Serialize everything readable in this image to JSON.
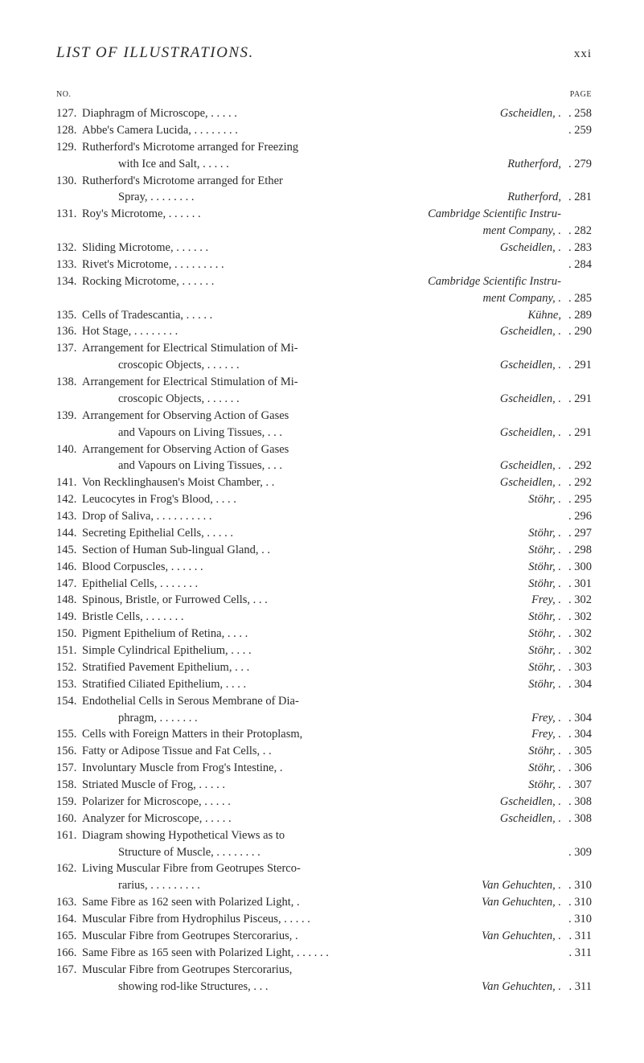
{
  "header": {
    "title": "LIST OF ILLUSTRATIONS.",
    "page_roman": "xxi",
    "col_no": "NO.",
    "col_page": "PAGE"
  },
  "entries": [
    {
      "n": "127.",
      "lines": [
        {
          "d": "Diaphragm of Microscope, .  .  .  . .",
          "s": "Gscheidlen, .",
          "p": ". 258"
        }
      ]
    },
    {
      "n": "128.",
      "lines": [
        {
          "d": "Abbe's Camera Lucida,    .  .  .  .  .  .  .  .",
          "s": "",
          "p": ". 259"
        }
      ]
    },
    {
      "n": "129.",
      "lines": [
        {
          "d": "Rutherford's Microtome arranged for Freezing",
          "s": "",
          "p": ""
        },
        {
          "d": "with Ice and Salt,    .  .  .  .  .",
          "h": 1,
          "s": "Rutherford,",
          "p": ". 279"
        }
      ]
    },
    {
      "n": "130.",
      "lines": [
        {
          "d": "Rutherford's Microtome arranged for Ether",
          "s": "",
          "p": ""
        },
        {
          "d": "Spray, .  .  .  .  .  .  .  .",
          "h": 1,
          "s": "Rutherford,",
          "p": ". 281"
        }
      ]
    },
    {
      "n": "131.",
      "lines": [
        {
          "d": "Roy's Microtome,    .  .  .  .  .  .",
          "s": "Cambridge Scientific Instru-",
          "p": ""
        },
        {
          "d": "",
          "h": 1,
          "s": "ment Company, .",
          "p": ". 282"
        }
      ]
    },
    {
      "n": "132.",
      "lines": [
        {
          "d": "Sliding Microtome,  .  .  .  .  .  .",
          "s": "Gscheidlen, .",
          "p": ". 283"
        }
      ]
    },
    {
      "n": "133.",
      "lines": [
        {
          "d": "Rivet's Microtome,    .  .  .  .  .  .  .  .  .",
          "s": "",
          "p": ". 284"
        }
      ]
    },
    {
      "n": "134.",
      "lines": [
        {
          "d": "Rocking Microtome, .  .  .  .  .  .",
          "s": "Cambridge Scientific Instru-",
          "p": ""
        },
        {
          "d": "",
          "h": 1,
          "s": "ment Company, .",
          "p": ". 285"
        }
      ]
    },
    {
      "n": "135.",
      "lines": [
        {
          "d": "Cells of Tradescantia,    .  .  .  .  .",
          "s": "Kühne,",
          "p": ". 289"
        }
      ]
    },
    {
      "n": "136.",
      "lines": [
        {
          "d": "Hot Stage, .  .  .  .  .  .  .  .",
          "s": "Gscheidlen, .",
          "p": ". 290"
        }
      ]
    },
    {
      "n": "137.",
      "lines": [
        {
          "d": "Arrangement for Electrical Stimulation of Mi-",
          "s": "",
          "p": ""
        },
        {
          "d": "croscopic Objects, .  .  .  .  .  .",
          "h": 1,
          "s": "Gscheidlen, .",
          "p": ". 291"
        }
      ]
    },
    {
      "n": "138.",
      "lines": [
        {
          "d": "Arrangement for Electrical Stimulation of Mi-",
          "s": "",
          "p": ""
        },
        {
          "d": "croscopic Objects, .  .  .  .  .  .",
          "h": 1,
          "s": "Gscheidlen, .",
          "p": ". 291"
        }
      ]
    },
    {
      "n": "139.",
      "lines": [
        {
          "d": "Arrangement for Observing Action of Gases",
          "s": "",
          "p": ""
        },
        {
          "d": "and Vapours on Living Tissues, .  .  .",
          "h": 1,
          "s": "Gscheidlen, .",
          "p": ". 291"
        }
      ]
    },
    {
      "n": "140.",
      "lines": [
        {
          "d": "Arrangement for Observing Action of Gases",
          "s": "",
          "p": ""
        },
        {
          "d": "and Vapours on Living Tissues, .  .  .",
          "h": 1,
          "s": "Gscheidlen, .",
          "p": ". 292"
        }
      ]
    },
    {
      "n": "141.",
      "lines": [
        {
          "d": "Von Recklinghausen's Moist Chamber,    .  .",
          "s": "Gscheidlen, .",
          "p": ". 292"
        }
      ]
    },
    {
      "n": "142.",
      "lines": [
        {
          "d": "Leucocytes in Frog's Blood,    .  .  .  .",
          "s": "Stöhr, .",
          "p": ". 295"
        }
      ]
    },
    {
      "n": "143.",
      "lines": [
        {
          "d": "Drop of Saliva, .  .  .  .  .  .  .  .  .  .",
          "s": "",
          "p": ". 296"
        }
      ]
    },
    {
      "n": "144.",
      "lines": [
        {
          "d": "Secreting Epithelial Cells, .  .  .  .  .",
          "s": "Stöhr, .",
          "p": ". 297"
        }
      ]
    },
    {
      "n": "145.",
      "lines": [
        {
          "d": "Section of Human Sub-lingual Gland,    .  .",
          "s": "Stöhr, .",
          "p": ". 298"
        }
      ]
    },
    {
      "n": "146.",
      "lines": [
        {
          "d": "Blood Corpuscles,    .  .  .  .  .  .",
          "s": "Stöhr, .",
          "p": ". 300"
        }
      ]
    },
    {
      "n": "147.",
      "lines": [
        {
          "d": "Epithelial Cells, .  .  .  .  .  .  .",
          "s": "Stöhr, .",
          "p": ". 301"
        }
      ]
    },
    {
      "n": "148.",
      "lines": [
        {
          "d": "Spinous, Bristle, or Furrowed Cells, .  .  .",
          "s": "Frey, .",
          "p": ". 302"
        }
      ]
    },
    {
      "n": "149.",
      "lines": [
        {
          "d": "Bristle Cells,    .  .  .  .  .  .  .",
          "s": "Stöhr, .",
          "p": ". 302"
        }
      ]
    },
    {
      "n": "150.",
      "lines": [
        {
          "d": "Pigment Epithelium of Retina, .  .  .  .",
          "s": "Stöhr, .",
          "p": ". 302"
        }
      ]
    },
    {
      "n": "151.",
      "lines": [
        {
          "d": "Simple Cylindrical Epithelium, .  .  .  .",
          "s": "Stöhr, .",
          "p": ". 302"
        }
      ]
    },
    {
      "n": "152.",
      "lines": [
        {
          "d": "Stratified Pavement Epithelium,    .  .  .",
          "s": "Stöhr, .",
          "p": ". 303"
        }
      ]
    },
    {
      "n": "153.",
      "lines": [
        {
          "d": "Stratified Ciliated Epithelium, .  .  .  .",
          "s": "Stöhr, .",
          "p": ". 304"
        }
      ]
    },
    {
      "n": "154.",
      "lines": [
        {
          "d": "Endothelial Cells in Serous Membrane of Dia-",
          "s": "",
          "p": ""
        },
        {
          "d": "phragm,    .  .  .  .  .  .  .",
          "h": 1,
          "s": "Frey, .",
          "p": ". 304"
        }
      ]
    },
    {
      "n": "155.",
      "lines": [
        {
          "d": "Cells with Foreign Matters in their Protoplasm,",
          "s": "Frey, .",
          "p": ". 304"
        }
      ]
    },
    {
      "n": "156.",
      "lines": [
        {
          "d": "Fatty or Adipose Tissue and Fat Cells,    .  .",
          "s": "Stöhr, .",
          "p": ". 305"
        }
      ]
    },
    {
      "n": "157.",
      "lines": [
        {
          "d": "Involuntary Muscle from Frog's Intestine,    .",
          "s": "Stöhr, .",
          "p": ". 306"
        }
      ]
    },
    {
      "n": "158.",
      "lines": [
        {
          "d": "Striated Muscle of Frog, .  .  .  .  .",
          "s": "Stöhr, .",
          "p": ". 307"
        }
      ]
    },
    {
      "n": "159.",
      "lines": [
        {
          "d": "Polarizer for Microscope, .  .  .  .  .",
          "s": "Gscheidlen, .",
          "p": ". 308"
        }
      ]
    },
    {
      "n": "160.",
      "lines": [
        {
          "d": "Analyzer for Microscope, .  .  .  .  .",
          "s": "Gscheidlen, .",
          "p": ". 308"
        }
      ]
    },
    {
      "n": "161.",
      "lines": [
        {
          "d": "Diagram showing Hypothetical Views as to",
          "s": "",
          "p": ""
        },
        {
          "d": "Structure of Muscle,    .  .  .  .  .  .  .  .",
          "h": 1,
          "s": "",
          "p": ". 309"
        }
      ]
    },
    {
      "n": "162.",
      "lines": [
        {
          "d": "Living Muscular Fibre from Geotrupes Sterco-",
          "s": "",
          "p": ""
        },
        {
          "d": "rarius, .  .  .  .  .  .  .  .  .",
          "h": 1,
          "s": "Van Gehuchten, .",
          "p": ". 310"
        }
      ]
    },
    {
      "n": "163.",
      "lines": [
        {
          "d": "Same Fibre as 162 seen with Polarized Light,    .",
          "s": "Van Gehuchten, .",
          "p": ". 310"
        }
      ]
    },
    {
      "n": "164.",
      "lines": [
        {
          "d": "Muscular Fibre from Hydrophilus Pisceus,    .  .  .  .  .",
          "s": "",
          "p": ". 310"
        }
      ]
    },
    {
      "n": "165.",
      "lines": [
        {
          "d": "Muscular Fibre from Geotrupes Stercorarius,    .",
          "s": "Van Gehuchten, .",
          "p": ". 311"
        }
      ]
    },
    {
      "n": "166.",
      "lines": [
        {
          "d": "Same Fibre as 165 seen with Polarized Light,    .  .  .  .  .  .",
          "s": "",
          "p": ". 311"
        }
      ]
    },
    {
      "n": "167.",
      "lines": [
        {
          "d": "Muscular Fibre from Geotrupes Stercorarius,",
          "s": "",
          "p": ""
        },
        {
          "d": "showing rod-like Structures,    .  .  .",
          "h": 1,
          "s": "Van Gehuchten, .",
          "p": ". 311"
        }
      ]
    }
  ]
}
